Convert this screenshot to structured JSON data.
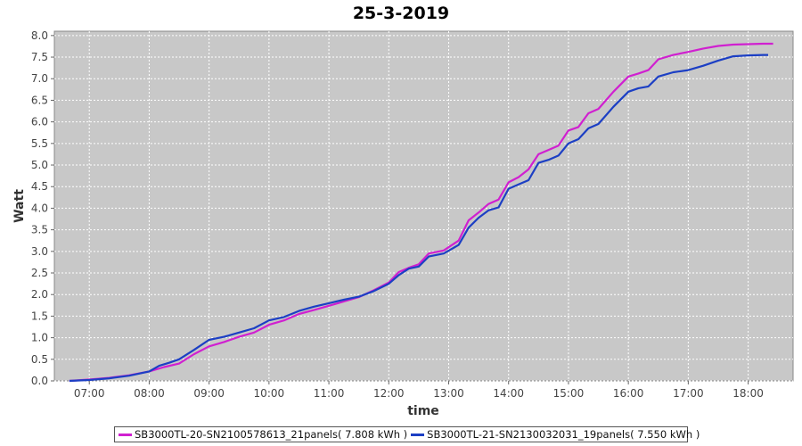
{
  "chart_data": {
    "type": "line",
    "title": "25-3-2019",
    "xlabel": "time",
    "ylabel": "Watt",
    "x_ticks": [
      "07:00",
      "08:00",
      "09:00",
      "10:00",
      "11:00",
      "12:00",
      "13:00",
      "14:00",
      "15:00",
      "16:00",
      "17:00",
      "18:00"
    ],
    "xlim": [
      "06:25",
      "18:45"
    ],
    "y_ticks": [
      "0.0",
      "0.5",
      "1.0",
      "1.5",
      "2.0",
      "2.5",
      "3.0",
      "3.5",
      "4.0",
      "4.5",
      "5.0",
      "5.5",
      "6.0",
      "6.5",
      "7.0",
      "7.5",
      "8.0"
    ],
    "ylim": [
      0,
      8.1
    ],
    "grid": true,
    "legend_position": "bottom",
    "series": [
      {
        "name": "SB3000TL-20-SN2100578613_21panels( 7.808 kWh )",
        "color": "#d020d0",
        "points": [
          [
            "06:40",
            0.0
          ],
          [
            "07:00",
            0.03
          ],
          [
            "07:20",
            0.07
          ],
          [
            "07:40",
            0.13
          ],
          [
            "08:00",
            0.22
          ],
          [
            "08:15",
            0.32
          ],
          [
            "08:30",
            0.4
          ],
          [
            "08:45",
            0.62
          ],
          [
            "09:00",
            0.8
          ],
          [
            "09:15",
            0.9
          ],
          [
            "09:30",
            1.02
          ],
          [
            "09:45",
            1.12
          ],
          [
            "10:00",
            1.3
          ],
          [
            "10:15",
            1.4
          ],
          [
            "10:30",
            1.55
          ],
          [
            "10:45",
            1.64
          ],
          [
            "11:00",
            1.74
          ],
          [
            "11:15",
            1.84
          ],
          [
            "11:30",
            1.94
          ],
          [
            "11:45",
            2.1
          ],
          [
            "12:00",
            2.28
          ],
          [
            "12:10",
            2.52
          ],
          [
            "12:20",
            2.62
          ],
          [
            "12:30",
            2.7
          ],
          [
            "12:40",
            2.95
          ],
          [
            "12:55",
            3.02
          ],
          [
            "13:10",
            3.25
          ],
          [
            "13:20",
            3.72
          ],
          [
            "13:30",
            3.9
          ],
          [
            "13:40",
            4.1
          ],
          [
            "13:50",
            4.2
          ],
          [
            "14:00",
            4.6
          ],
          [
            "14:10",
            4.72
          ],
          [
            "14:20",
            4.9
          ],
          [
            "14:30",
            5.25
          ],
          [
            "14:40",
            5.35
          ],
          [
            "14:50",
            5.45
          ],
          [
            "15:00",
            5.8
          ],
          [
            "15:10",
            5.88
          ],
          [
            "15:20",
            6.2
          ],
          [
            "15:30",
            6.3
          ],
          [
            "15:45",
            6.7
          ],
          [
            "16:00",
            7.05
          ],
          [
            "16:10",
            7.12
          ],
          [
            "16:20",
            7.2
          ],
          [
            "16:30",
            7.45
          ],
          [
            "16:45",
            7.55
          ],
          [
            "17:00",
            7.62
          ],
          [
            "17:15",
            7.7
          ],
          [
            "17:30",
            7.76
          ],
          [
            "17:45",
            7.79
          ],
          [
            "18:00",
            7.8
          ],
          [
            "18:15",
            7.81
          ],
          [
            "18:25",
            7.81
          ]
        ]
      },
      {
        "name": "SB3000TL-21-SN2130032031_19panels( 7.550 kWh )",
        "color": "#1c3fc4",
        "points": [
          [
            "06:40",
            0.0
          ],
          [
            "07:00",
            0.02
          ],
          [
            "07:20",
            0.06
          ],
          [
            "07:40",
            0.12
          ],
          [
            "08:00",
            0.22
          ],
          [
            "08:10",
            0.35
          ],
          [
            "08:20",
            0.42
          ],
          [
            "08:30",
            0.5
          ],
          [
            "08:45",
            0.72
          ],
          [
            "09:00",
            0.95
          ],
          [
            "09:15",
            1.02
          ],
          [
            "09:30",
            1.12
          ],
          [
            "09:45",
            1.22
          ],
          [
            "10:00",
            1.4
          ],
          [
            "10:15",
            1.48
          ],
          [
            "10:30",
            1.62
          ],
          [
            "10:45",
            1.72
          ],
          [
            "11:00",
            1.8
          ],
          [
            "11:15",
            1.88
          ],
          [
            "11:30",
            1.95
          ],
          [
            "11:45",
            2.08
          ],
          [
            "12:00",
            2.25
          ],
          [
            "12:10",
            2.45
          ],
          [
            "12:20",
            2.6
          ],
          [
            "12:30",
            2.65
          ],
          [
            "12:40",
            2.88
          ],
          [
            "12:55",
            2.95
          ],
          [
            "13:10",
            3.15
          ],
          [
            "13:20",
            3.55
          ],
          [
            "13:30",
            3.78
          ],
          [
            "13:40",
            3.95
          ],
          [
            "13:50",
            4.02
          ],
          [
            "14:00",
            4.45
          ],
          [
            "14:10",
            4.55
          ],
          [
            "14:20",
            4.65
          ],
          [
            "14:30",
            5.05
          ],
          [
            "14:40",
            5.12
          ],
          [
            "14:50",
            5.22
          ],
          [
            "15:00",
            5.5
          ],
          [
            "15:10",
            5.6
          ],
          [
            "15:20",
            5.85
          ],
          [
            "15:30",
            5.95
          ],
          [
            "15:45",
            6.35
          ],
          [
            "16:00",
            6.7
          ],
          [
            "16:10",
            6.78
          ],
          [
            "16:20",
            6.82
          ],
          [
            "16:30",
            7.05
          ],
          [
            "16:45",
            7.15
          ],
          [
            "17:00",
            7.2
          ],
          [
            "17:15",
            7.3
          ],
          [
            "17:30",
            7.42
          ],
          [
            "17:45",
            7.52
          ],
          [
            "18:00",
            7.54
          ],
          [
            "18:15",
            7.55
          ],
          [
            "18:20",
            7.55
          ]
        ]
      }
    ]
  }
}
